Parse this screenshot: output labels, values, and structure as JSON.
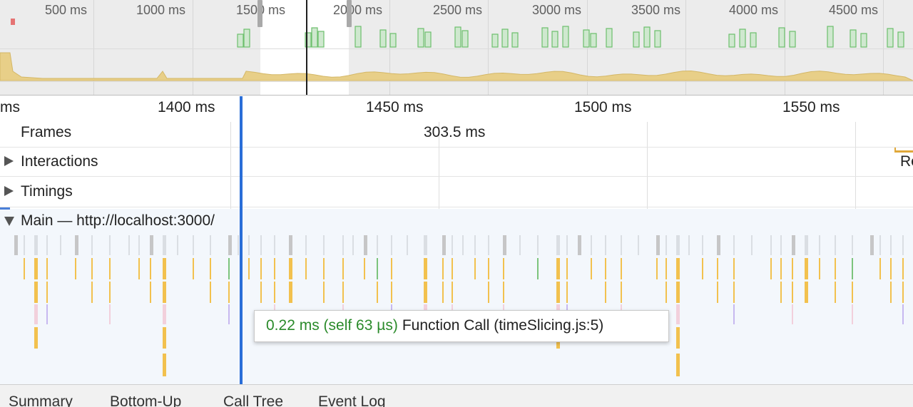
{
  "overview": {
    "ticks": [
      "500 ms",
      "1000 ms",
      "1500 ms",
      "2000 ms",
      "2500 ms",
      "3000 ms",
      "3500 ms",
      "4000 ms",
      "4500 ms"
    ]
  },
  "ruler": {
    "labels": [
      "ms",
      "1400 ms",
      "1450 ms",
      "1500 ms",
      "1550 ms"
    ]
  },
  "tracks": {
    "frames": {
      "title": "Frames",
      "duration": "303.5 ms"
    },
    "interactions": {
      "title": "Interactions",
      "partial_label": "Re"
    },
    "timings": {
      "title": "Timings"
    },
    "main": {
      "title": "Main — http://localhost:3000/"
    }
  },
  "tooltip": {
    "time": "0.22 ms (self 63 µs)",
    "name": "Function Call (timeSlicing.js:5)"
  },
  "bottom_tabs": [
    "Summary",
    "Bottom-Up",
    "Call Tree",
    "Event Log"
  ],
  "colors": {
    "scripting": "#f2c14e",
    "system": "#bdbdbd",
    "painting": "#7cc47c",
    "rendering": "#c7b8f0",
    "selection": "#2a6ed8",
    "fps_fill": "#cfe8cf",
    "fps_stroke": "#6cbf6c",
    "cpu_fill": "#e8cf88"
  }
}
